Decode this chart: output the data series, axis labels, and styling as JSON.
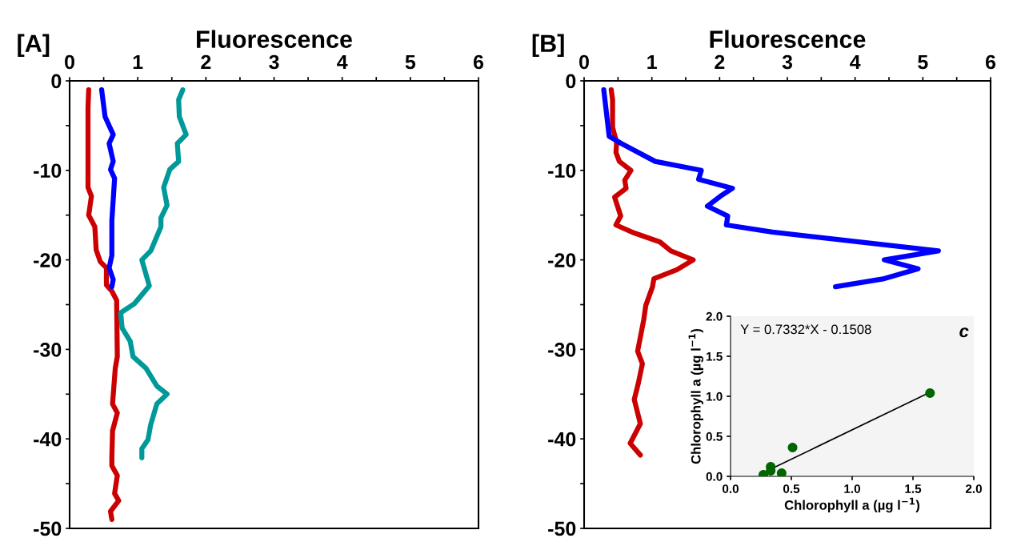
{
  "chart_data": [
    {
      "type": "line",
      "title": "[A]",
      "xlabel": "Fluorescence",
      "xlim": [
        0,
        6
      ],
      "ylim": [
        -50,
        0
      ],
      "xticks": [
        0,
        {
          "value": 0.5,
          "label": null
        },
        1,
        {
          "value": 1.5,
          "label": null
        },
        2,
        {
          "value": 2.5,
          "label": null
        },
        3,
        {
          "value": 3.5,
          "label": null
        },
        4,
        {
          "value": 4.5,
          "label": null
        },
        5,
        {
          "value": 5.5,
          "label": null
        },
        6
      ],
      "yticks": [
        0,
        {
          "value": -5,
          "label": null
        },
        -10,
        {
          "value": -15,
          "label": null
        },
        -20,
        {
          "value": -25,
          "label": null
        },
        -30,
        {
          "value": -35,
          "label": null
        },
        -40,
        {
          "value": -45,
          "label": null
        },
        -50
      ],
      "grid": false,
      "legend": false,
      "marker": "none",
      "line_style": "solid",
      "series": [
        {
          "color": "#cc0000",
          "x": [
            0.28,
            0.27,
            0.27,
            0.32,
            0.28,
            0.37,
            0.39,
            0.45,
            0.54,
            0.54,
            0.62,
            0.69,
            0.7,
            0.67,
            0.63,
            0.7,
            0.63,
            0.62,
            0.62,
            0.7,
            0.66,
            0.72,
            0.6,
            0.62
          ],
          "values": [
            -1,
            -3,
            -11.9,
            -12.9,
            -15,
            -16.3,
            -18.9,
            -20.2,
            -20.9,
            -22.8,
            -23.5,
            -24.5,
            -30.8,
            -32.1,
            -36.1,
            -37.1,
            -39.1,
            -42.1,
            -43,
            -44.1,
            -46.1,
            -46.9,
            -48.1,
            -49
          ]
        },
        {
          "color": "#0000ff",
          "x": [
            0.47,
            0.52,
            0.64,
            0.58,
            0.64,
            0.6,
            0.66,
            0.62,
            0.62,
            0.58,
            0.64,
            0.62
          ],
          "values": [
            -1,
            -4,
            -6,
            -7,
            -9,
            -9.9,
            -10.9,
            -15.6,
            -19.5,
            -20.9,
            -22.2,
            -23
          ]
        },
        {
          "color": "#009999",
          "x": [
            1.66,
            1.6,
            1.61,
            1.71,
            1.58,
            1.6,
            1.47,
            1.38,
            1.43,
            1.34,
            1.34,
            1.19,
            1.06,
            1.17,
            0.95,
            0.75,
            0.77,
            0.89,
            0.93,
            1.12,
            1.28,
            1.43,
            1.28,
            1.19,
            1.15,
            1.06,
            1.06
          ],
          "values": [
            -1,
            -2.1,
            -4,
            -6,
            -7,
            -9,
            -9.9,
            -11.9,
            -13.9,
            -15.3,
            -16.3,
            -19,
            -20,
            -22.9,
            -24.9,
            -25.9,
            -27.6,
            -29.1,
            -30.8,
            -32.1,
            -34.1,
            -35,
            -36.1,
            -38.4,
            -40.1,
            -41.1,
            -42.1
          ]
        }
      ]
    },
    {
      "type": "line",
      "title": "[B]",
      "xlabel": "Fluorescence",
      "xlim": [
        0,
        6
      ],
      "ylim": [
        -50,
        0
      ],
      "xticks": [
        0,
        {
          "value": 0.5,
          "label": null
        },
        1,
        {
          "value": 1.5,
          "label": null
        },
        2,
        {
          "value": 2.5,
          "label": null
        },
        3,
        {
          "value": 3.5,
          "label": null
        },
        4,
        {
          "value": 4.5,
          "label": null
        },
        5,
        {
          "value": 5.5,
          "label": null
        },
        6
      ],
      "yticks": [
        0,
        {
          "value": -5,
          "label": null
        },
        -10,
        {
          "value": -15,
          "label": null
        },
        -20,
        {
          "value": -25,
          "label": null
        },
        -30,
        {
          "value": -35,
          "label": null
        },
        -40,
        {
          "value": -45,
          "label": null
        },
        -50
      ],
      "grid": false,
      "legend": false,
      "marker": "none",
      "line_style": "solid",
      "series": [
        {
          "color": "#cc0000",
          "x": [
            0.4,
            0.42,
            0.42,
            0.48,
            0.47,
            0.52,
            0.69,
            0.6,
            0.62,
            0.45,
            0.54,
            0.47,
            0.74,
            1.12,
            1.28,
            1.61,
            1.37,
            1.03,
            1.01,
            0.91,
            0.88,
            0.79,
            0.86,
            0.8,
            0.74,
            0.83,
            0.68,
            0.83
          ],
          "values": [
            -1,
            -2.1,
            -5.2,
            -6.9,
            -8,
            -9,
            -10,
            -11.1,
            -12,
            -13,
            -15.1,
            -16.1,
            -17,
            -18,
            -19,
            -20,
            -21.1,
            -22.1,
            -23,
            -25.1,
            -26.7,
            -30.2,
            -31.6,
            -33.8,
            -35.6,
            -38.3,
            -40.5,
            -41.8
          ]
        },
        {
          "color": "#0000ff",
          "x": [
            0.29,
            0.37,
            0.55,
            1.05,
            1.73,
            1.69,
            2.19,
            2.01,
            1.82,
            2.12,
            2.1,
            2.78,
            5.23,
            4.43,
            4.93,
            4.43,
            3.71
          ],
          "values": [
            -1,
            -6.2,
            -7,
            -9,
            -10,
            -11,
            -12,
            -12.9,
            -14,
            -15.1,
            -16.1,
            -16.9,
            -19,
            -20,
            -21,
            -22.1,
            -23
          ]
        }
      ]
    },
    {
      "type": "scatter",
      "xlabel": "Chlorophyll a (µg l$^{−1}$)",
      "ylabel": "Chlorophyll a (µg l$^{−1}$)",
      "xlim": [
        0,
        2
      ],
      "ylim": [
        0,
        2
      ],
      "xticks": [
        {
          "value": 0,
          "label": "0.0"
        },
        0.5,
        {
          "value": 1,
          "label": "1.0"
        },
        1.5,
        {
          "value": 2,
          "label": "2.0"
        }
      ],
      "yticks": [
        {
          "value": 0,
          "label": "0.0"
        },
        0.5,
        {
          "value": 1,
          "label": "1.0"
        },
        1.5,
        {
          "value": 2,
          "label": "2.0"
        }
      ],
      "grid": false,
      "legend": false,
      "annotations": [
        "Y = 0.7332*X - 0.1508",
        "c"
      ],
      "series": [
        {
          "color": "#006600",
          "marker": "circle",
          "x": [
            0.27,
            0.33,
            0.33,
            0.42,
            0.51,
            1.64
          ],
          "values": [
            0.02,
            0.12,
            0.07,
            0.04,
            0.36,
            1.04
          ]
        },
        {
          "type": "line",
          "marker": "none",
          "color": "#000000",
          "x": [
            0.33,
            1.64
          ],
          "values": [
            0.09,
            1.05
          ]
        }
      ]
    }
  ]
}
